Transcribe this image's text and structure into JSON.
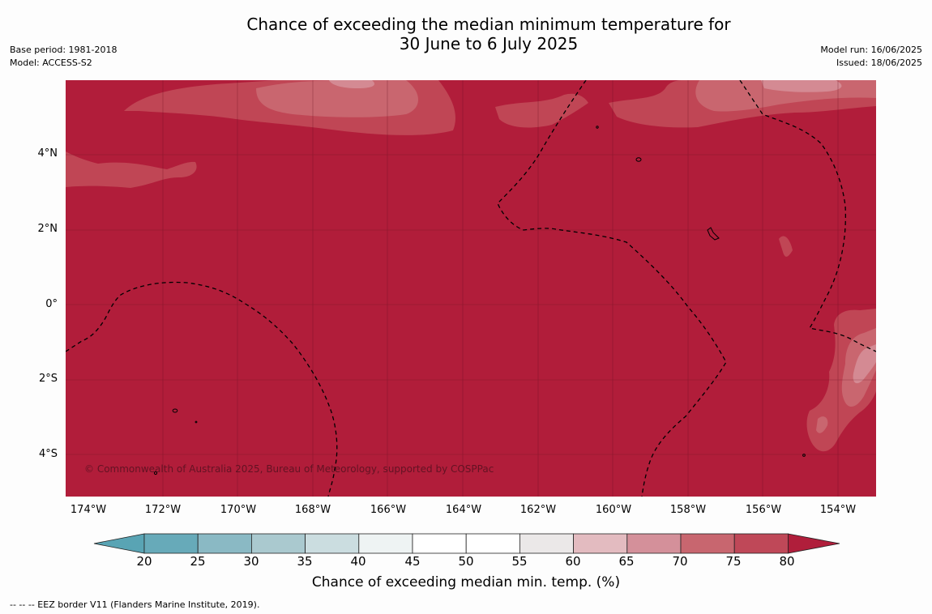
{
  "title": {
    "line1": "Chance of exceeding the median minimum temperature for",
    "line2": "30 June to 6 July 2025"
  },
  "meta_left": {
    "base_period": "Base period: 1981-2018",
    "model": "Model: ACCESS-S2"
  },
  "meta_right": {
    "model_run": "Model run: 16/06/2025",
    "issued": "Issued: 18/06/2025"
  },
  "map": {
    "lat_labels": [
      "4°N",
      "2°N",
      "0°",
      "2°S",
      "4°S"
    ],
    "lon_labels": [
      "174°W",
      "172°W",
      "170°W",
      "168°W",
      "166°W",
      "164°W",
      "162°W",
      "160°W",
      "158°W",
      "156°W",
      "154°W"
    ],
    "copyright": "© Commonwealth of Australia 2025, Bureau of Meteorology, supported by COSPPac",
    "colors": {
      "above_80": "#b11d3a",
      "75_80": "#c04655",
      "70_75": "#c9666f",
      "65_70": "#d48a93"
    }
  },
  "colorbar": {
    "ticks": [
      "20",
      "25",
      "30",
      "35",
      "40",
      "45",
      "50",
      "55",
      "60",
      "65",
      "70",
      "75",
      "80"
    ],
    "colors": [
      "#59a4b4",
      "#67aab9",
      "#8ab9c4",
      "#aac9cf",
      "#cbdde0",
      "#eef3f3",
      "#ffffff",
      "#ffffff",
      "#ebe8e8",
      "#e3bbc0",
      "#d4909a",
      "#c8666f",
      "#bf4858",
      "#b01e3b"
    ],
    "label": "Chance of exceeding median min. temp. (%)"
  },
  "footnote": "--  --  -- EEZ border V11 (Flanders Marine Institute, 2019)."
}
